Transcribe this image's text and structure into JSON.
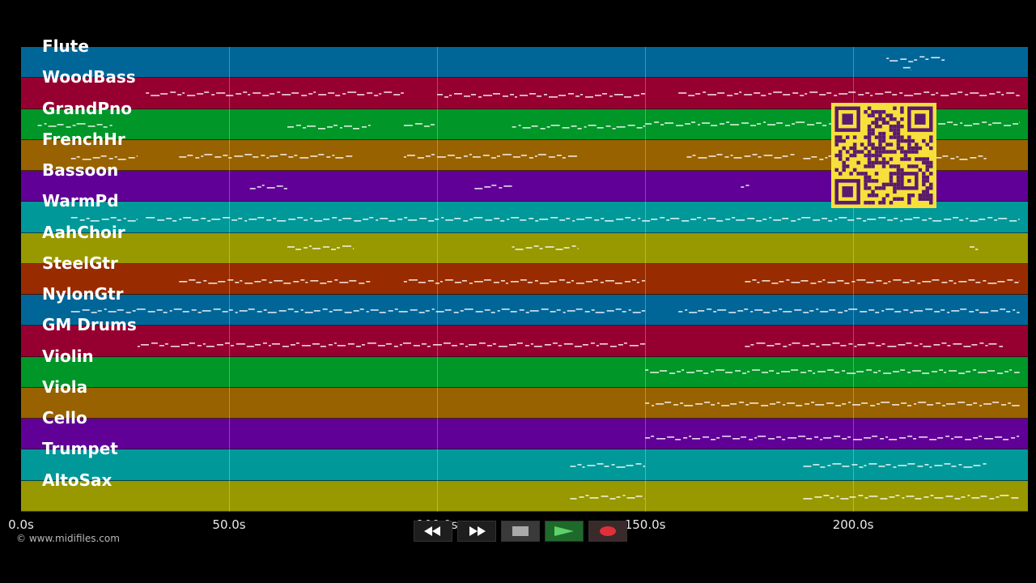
{
  "tracks": [
    {
      "name": "Flute",
      "color": "#006698",
      "notes": [
        [
          208,
          216,
          0.4
        ],
        [
          216,
          222,
          0.35
        ],
        [
          212,
          214,
          0.7
        ]
      ]
    },
    {
      "name": "WoodBass",
      "color": "#960030",
      "notes": [
        [
          30,
          92,
          0.5
        ],
        [
          100,
          150,
          0.55
        ],
        [
          158,
          240,
          0.5
        ]
      ]
    },
    {
      "name": "GrandPno",
      "color": "#009628",
      "notes": [
        [
          4,
          22,
          0.5
        ],
        [
          64,
          84,
          0.55
        ],
        [
          92,
          100,
          0.5
        ],
        [
          118,
          150,
          0.55
        ],
        [
          150,
          240,
          0.45
        ]
      ]
    },
    {
      "name": "FrenchHr",
      "color": "#986200",
      "notes": [
        [
          12,
          28,
          0.55
        ],
        [
          38,
          80,
          0.5
        ],
        [
          92,
          134,
          0.5
        ],
        [
          160,
          186,
          0.5
        ],
        [
          188,
          232,
          0.55
        ]
      ]
    },
    {
      "name": "Bassoon",
      "color": "#600096",
      "notes": [
        [
          55,
          64,
          0.5
        ],
        [
          109,
          118,
          0.5
        ],
        [
          173,
          175,
          0.45
        ]
      ]
    },
    {
      "name": "WarmPd",
      "color": "#009898",
      "notes": [
        [
          12,
          28,
          0.55
        ],
        [
          30,
          240,
          0.55
        ]
      ]
    },
    {
      "name": "AahChoir",
      "color": "#989800",
      "notes": [
        [
          64,
          80,
          0.45
        ],
        [
          118,
          134,
          0.45
        ],
        [
          228,
          230,
          0.45
        ]
      ]
    },
    {
      "name": "SteelGtr",
      "color": "#982c00",
      "notes": [
        [
          38,
          84,
          0.55
        ],
        [
          92,
          150,
          0.55
        ],
        [
          174,
          240,
          0.55
        ]
      ]
    },
    {
      "name": "NylonGtr",
      "color": "#006698",
      "notes": [
        [
          12,
          150,
          0.5
        ],
        [
          158,
          240,
          0.5
        ]
      ]
    },
    {
      "name": "GM Drums",
      "color": "#960030",
      "notes": [
        [
          28,
          150,
          0.6
        ],
        [
          174,
          236,
          0.6
        ]
      ]
    },
    {
      "name": "Violin",
      "color": "#009628",
      "notes": [
        [
          150,
          240,
          0.45
        ]
      ]
    },
    {
      "name": "Viola",
      "color": "#986200",
      "notes": [
        [
          150,
          240,
          0.5
        ]
      ]
    },
    {
      "name": "Cello",
      "color": "#600096",
      "notes": [
        [
          150,
          240,
          0.6
        ]
      ]
    },
    {
      "name": "Trumpet",
      "color": "#009898",
      "notes": [
        [
          132,
          150,
          0.5
        ],
        [
          188,
          232,
          0.5
        ]
      ]
    },
    {
      "name": "AltoSax",
      "color": "#989800",
      "notes": [
        [
          132,
          150,
          0.5
        ],
        [
          188,
          240,
          0.5
        ]
      ]
    }
  ],
  "timeline": {
    "max": 242,
    "ticks": [
      {
        "value": 0,
        "label": "0.0s"
      },
      {
        "value": 50,
        "label": "50.0s"
      },
      {
        "value": 100,
        "label": "100.0s"
      },
      {
        "value": 150,
        "label": "150.0s"
      },
      {
        "value": 200,
        "label": "200.0s"
      }
    ]
  },
  "copyright": "© www.midifiles.com",
  "transport": {
    "buttons": [
      "rewind-icon",
      "fast-forward-icon",
      "stop-icon",
      "play-icon",
      "record-icon"
    ]
  },
  "qr_colors": {
    "fg": "#5a1a6e",
    "bg": "#f6e03c"
  }
}
